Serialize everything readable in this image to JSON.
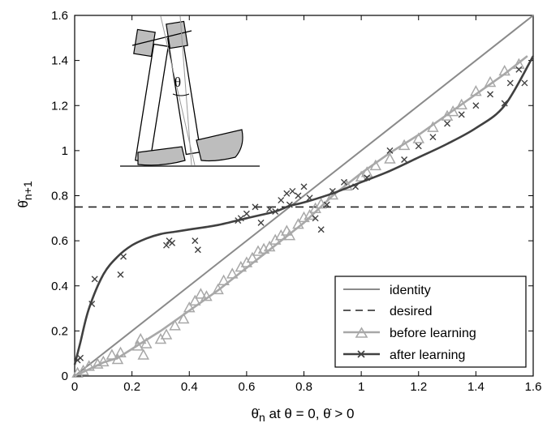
{
  "chart_data": {
    "type": "line",
    "xlabel": {
      "base": "θ̇",
      "sub": "n",
      "rest": " at  θ = 0,  θ̇ > 0"
    },
    "ylabel": {
      "base": "θ̇",
      "sub": "n+1"
    },
    "xlim": [
      0,
      1.6
    ],
    "ylim": [
      0,
      1.6
    ],
    "xticks": [
      "0",
      "0.2",
      "0.4",
      "0.6",
      "0.8",
      "1",
      "1.2",
      "1.4",
      "1.6"
    ],
    "yticks": [
      "0",
      "0.2",
      "0.4",
      "0.6",
      "0.8",
      "1",
      "1.2",
      "1.4",
      "1.6"
    ],
    "grid": false,
    "legend_position": "bottom-right",
    "inset_label": "θ",
    "colors": {
      "identity": "#8a8a8a",
      "desired": "#222222",
      "before": "#a8a8a8",
      "after": "#404040"
    },
    "series": [
      {
        "name": "identity",
        "style": "solid-line",
        "x": [
          0,
          1.6
        ],
        "y": [
          0,
          1.6
        ]
      },
      {
        "name": "desired",
        "style": "dashed-line",
        "x": [
          0,
          1.6
        ],
        "y": [
          0.75,
          0.75
        ]
      },
      {
        "name": "before learning",
        "style": "line-triangle",
        "x": [
          0,
          0.05,
          0.1,
          0.15,
          0.2,
          0.3,
          0.4,
          0.5,
          0.6,
          0.7,
          0.8,
          0.9,
          1.0,
          1.1,
          1.2,
          1.3,
          1.4,
          1.5,
          1.58
        ],
        "y": [
          0,
          0.03,
          0.06,
          0.08,
          0.12,
          0.2,
          0.29,
          0.38,
          0.48,
          0.58,
          0.68,
          0.8,
          0.9,
          0.99,
          1.07,
          1.16,
          1.25,
          1.34,
          1.42
        ],
        "markers": {
          "x": [
            0.01,
            0.03,
            0.05,
            0.08,
            0.1,
            0.13,
            0.15,
            0.16,
            0.22,
            0.23,
            0.24,
            0.25,
            0.3,
            0.32,
            0.35,
            0.38,
            0.4,
            0.42,
            0.44,
            0.46,
            0.5,
            0.52,
            0.55,
            0.58,
            0.6,
            0.62,
            0.64,
            0.66,
            0.68,
            0.7,
            0.72,
            0.74,
            0.75,
            0.78,
            0.8,
            0.82,
            0.84,
            0.86,
            0.9,
            0.95,
            1.0,
            1.02,
            1.05,
            1.1,
            1.15,
            1.2,
            1.25,
            1.3,
            1.32,
            1.35,
            1.4,
            1.45,
            1.5,
            1.55
          ],
          "y": [
            0.01,
            0.02,
            0.04,
            0.05,
            0.06,
            0.09,
            0.07,
            0.1,
            0.13,
            0.16,
            0.09,
            0.14,
            0.16,
            0.18,
            0.22,
            0.25,
            0.3,
            0.33,
            0.36,
            0.35,
            0.38,
            0.42,
            0.45,
            0.48,
            0.5,
            0.52,
            0.55,
            0.56,
            0.57,
            0.6,
            0.62,
            0.64,
            0.62,
            0.67,
            0.7,
            0.71,
            0.74,
            0.76,
            0.8,
            0.84,
            0.88,
            0.9,
            0.93,
            0.96,
            1.02,
            1.05,
            1.1,
            1.15,
            1.17,
            1.2,
            1.26,
            1.3,
            1.35,
            1.38
          ]
        }
      },
      {
        "name": "after learning",
        "style": "line-x",
        "x": [
          0,
          0.02,
          0.05,
          0.1,
          0.15,
          0.2,
          0.25,
          0.3,
          0.35,
          0.4,
          0.5,
          0.6,
          0.7,
          0.75,
          0.8,
          0.9,
          1.0,
          1.1,
          1.2,
          1.3,
          1.4,
          1.5,
          1.6
        ],
        "y": [
          0.05,
          0.15,
          0.3,
          0.45,
          0.53,
          0.58,
          0.61,
          0.63,
          0.64,
          0.65,
          0.67,
          0.7,
          0.73,
          0.755,
          0.77,
          0.81,
          0.86,
          0.91,
          0.97,
          1.03,
          1.1,
          1.2,
          1.42
        ],
        "markers": {
          "x": [
            0.01,
            0.02,
            0.06,
            0.07,
            0.16,
            0.17,
            0.32,
            0.33,
            0.34,
            0.42,
            0.43,
            0.57,
            0.58,
            0.6,
            0.63,
            0.65,
            0.68,
            0.7,
            0.72,
            0.74,
            0.75,
            0.76,
            0.78,
            0.8,
            0.82,
            0.84,
            0.86,
            0.88,
            0.9,
            0.94,
            0.98,
            1.02,
            1.1,
            1.15,
            1.2,
            1.25,
            1.3,
            1.35,
            1.4,
            1.45,
            1.5,
            1.52,
            1.55,
            1.57
          ],
          "y": [
            0.07,
            0.08,
            0.32,
            0.43,
            0.45,
            0.53,
            0.58,
            0.6,
            0.59,
            0.6,
            0.56,
            0.69,
            0.7,
            0.72,
            0.75,
            0.68,
            0.74,
            0.73,
            0.78,
            0.81,
            0.76,
            0.82,
            0.8,
            0.84,
            0.79,
            0.7,
            0.65,
            0.76,
            0.82,
            0.86,
            0.84,
            0.88,
            1.0,
            0.96,
            1.02,
            1.06,
            1.12,
            1.16,
            1.2,
            1.25,
            1.21,
            1.3,
            1.36,
            1.3
          ]
        }
      }
    ]
  }
}
